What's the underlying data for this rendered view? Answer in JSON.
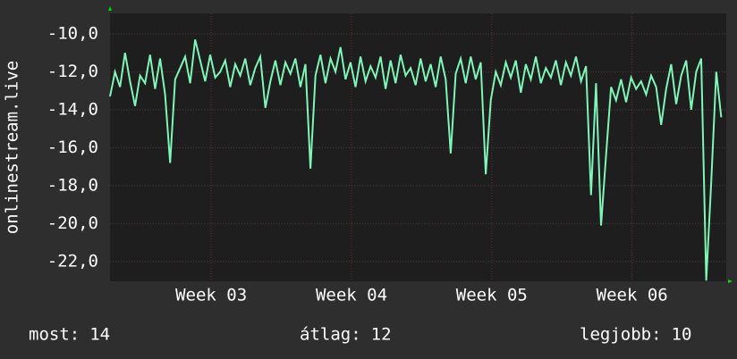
{
  "chart_data": {
    "type": "line",
    "y_label": "onlinestream.live",
    "x": [
      0,
      1,
      2,
      3,
      4,
      5,
      6,
      7,
      8,
      9,
      10,
      11,
      12,
      13,
      14,
      15,
      16,
      17,
      18,
      19,
      20,
      21,
      22,
      23,
      24,
      25,
      26,
      27,
      28,
      29,
      30,
      31,
      32,
      33,
      34,
      35,
      36,
      37,
      38,
      39,
      40,
      41,
      42,
      43,
      44,
      45,
      46,
      47,
      48,
      49,
      50,
      51,
      52,
      53,
      54,
      55,
      56,
      57,
      58,
      59,
      60,
      61,
      62,
      63,
      64,
      65,
      66,
      67,
      68,
      69,
      70,
      71,
      72,
      73,
      74,
      75,
      76,
      77,
      78,
      79,
      80,
      81,
      82,
      83,
      84,
      85,
      86,
      87,
      88,
      89,
      90,
      91,
      92,
      93,
      94,
      95,
      96,
      97,
      98,
      99,
      100,
      101,
      102,
      103,
      104,
      105,
      106,
      107,
      108,
      109,
      110,
      111,
      112,
      113,
      114,
      115,
      116,
      117,
      118,
      119,
      120,
      121,
      122
    ],
    "series": [
      {
        "color": "#7ff5b8",
        "values": [
          -13.3,
          -12.0,
          -12.8,
          -11.0,
          -12.5,
          -13.8,
          -12.2,
          -12.6,
          -11.1,
          -12.9,
          -11.3,
          -13.2,
          -16.8,
          -12.4,
          -11.8,
          -11.2,
          -12.6,
          -10.3,
          -11.4,
          -12.5,
          -11.1,
          -12.3,
          -12.0,
          -11.4,
          -12.8,
          -11.6,
          -12.2,
          -11.3,
          -12.7,
          -11.8,
          -11.2,
          -13.9,
          -12.5,
          -11.4,
          -12.7,
          -11.5,
          -12.1,
          -11.3,
          -12.8,
          -11.6,
          -17.1,
          -12.2,
          -11.1,
          -12.6,
          -11.3,
          -12.0,
          -10.7,
          -12.4,
          -11.5,
          -12.8,
          -11.2,
          -12.5,
          -11.7,
          -12.3,
          -11.2,
          -12.9,
          -11.4,
          -12.6,
          -11.1,
          -12.2,
          -11.8,
          -12.7,
          -11.3,
          -12.5,
          -11.6,
          -12.8,
          -11.2,
          -12.4,
          -16.3,
          -12.1,
          -11.3,
          -12.6,
          -11.2,
          -12.4,
          -11.5,
          -17.4,
          -13.5,
          -12.0,
          -12.7,
          -11.5,
          -12.3,
          -11.4,
          -13.1,
          -11.6,
          -12.4,
          -11.2,
          -12.6,
          -11.8,
          -12.3,
          -11.4,
          -12.7,
          -11.5,
          -12.2,
          -11.2,
          -12.5,
          -11.7,
          -18.5,
          -12.6,
          -20.1,
          -16.4,
          -12.8,
          -13.5,
          -12.4,
          -13.6,
          -12.3,
          -12.9,
          -12.5,
          -13.2,
          -12.2,
          -12.8,
          -14.8,
          -12.9,
          -11.6,
          -13.7,
          -12.2,
          -11.4,
          -14.0,
          -12.0,
          -11.3,
          -23.0,
          -17.8,
          -12.0,
          -14.4
        ]
      }
    ],
    "xlim": [
      0,
      123
    ],
    "xticks": [
      {
        "value": 20.2,
        "label": "Week 03"
      },
      {
        "value": 48.2,
        "label": "Week 04"
      },
      {
        "value": 76.2,
        "label": "Week 05"
      },
      {
        "value": 104.2,
        "label": "Week 06"
      }
    ],
    "ylim": [
      -23.04,
      -8.92
    ],
    "yticks": [
      {
        "value": -10,
        "label": "-10,0"
      },
      {
        "value": -12,
        "label": "-12,0"
      },
      {
        "value": -14,
        "label": "-14,0"
      },
      {
        "value": -16,
        "label": "-16,0"
      },
      {
        "value": -18,
        "label": "-18,0"
      },
      {
        "value": -20,
        "label": "-20,0"
      },
      {
        "value": -22,
        "label": "-22,0"
      }
    ],
    "grid": true,
    "stats": [
      {
        "label": "most:",
        "value": 14
      },
      {
        "label": "átlag:",
        "value": 12
      },
      {
        "label": "legjobb:",
        "value": 10
      }
    ]
  }
}
